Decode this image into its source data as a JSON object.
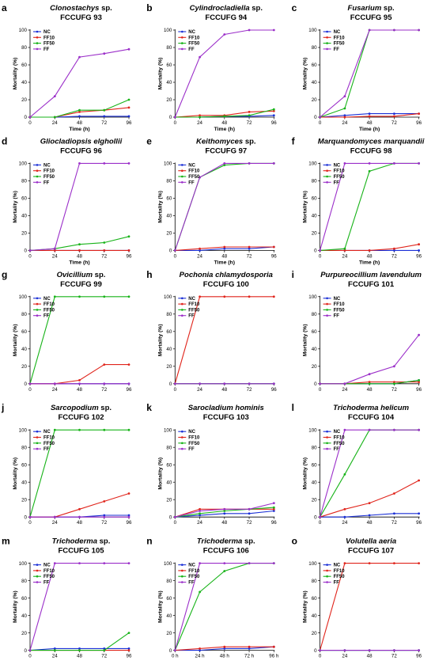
{
  "colors": {
    "NC": "#1a2fd6",
    "FF10": "#e0241b",
    "FF50": "#17b318",
    "FF": "#9b2fc9"
  },
  "legend": [
    "NC",
    "FF10",
    "FF50",
    "FF"
  ],
  "chart_data": [
    {
      "type": "line",
      "letter": "a",
      "title_italic": "Clonostachys",
      "title_rest": " sp.",
      "code": "FCCUFG 93",
      "xlabel": "Time (h)",
      "ylabel": "Mortality (%)",
      "ylim": [
        0,
        100
      ],
      "x": [
        0,
        24,
        48,
        72,
        96
      ],
      "xticks": [
        "0",
        "24",
        "48",
        "72",
        "96"
      ],
      "yticks": [
        "0",
        "20",
        "40",
        "60",
        "80",
        "100"
      ],
      "series": [
        {
          "name": "NC",
          "values": [
            0,
            0,
            1,
            1,
            1
          ]
        },
        {
          "name": "FF10",
          "values": [
            0,
            0,
            6,
            8,
            11
          ]
        },
        {
          "name": "FF50",
          "values": [
            0,
            0,
            8,
            8,
            20
          ]
        },
        {
          "name": "FF",
          "values": [
            0,
            24,
            69,
            73,
            78
          ]
        }
      ]
    },
    {
      "type": "line",
      "letter": "b",
      "title_italic": "Cylindrocladiella",
      "title_rest": " sp.",
      "code": "FCCUFG 94",
      "xlabel": "Time (h)",
      "ylabel": "Mortality (%)",
      "ylim": [
        0,
        100
      ],
      "x": [
        0,
        24,
        48,
        72,
        96
      ],
      "xticks": [
        "0",
        "24",
        "48",
        "72",
        "96"
      ],
      "yticks": [
        "0",
        "20",
        "40",
        "60",
        "80",
        "100"
      ],
      "series": [
        {
          "name": "NC",
          "values": [
            0,
            0,
            1,
            1,
            2
          ]
        },
        {
          "name": "FF10",
          "values": [
            0,
            2,
            2,
            6,
            7
          ]
        },
        {
          "name": "FF50",
          "values": [
            0,
            0,
            1,
            2,
            9
          ]
        },
        {
          "name": "FF",
          "values": [
            0,
            69,
            95,
            100,
            100
          ]
        }
      ]
    },
    {
      "type": "line",
      "letter": "c",
      "title_italic": "Fusarium",
      "title_rest": " sp.",
      "code": "FCCUFG 95",
      "xlabel": "Time (h)",
      "ylabel": "Mortality (%)",
      "ylim": [
        0,
        100
      ],
      "x": [
        0,
        24,
        48,
        72,
        96
      ],
      "xticks": [
        "0",
        "24",
        "48",
        "72",
        "96"
      ],
      "yticks": [
        "0",
        "20",
        "40",
        "60",
        "80",
        "100"
      ],
      "series": [
        {
          "name": "NC",
          "values": [
            0,
            2,
            4,
            4,
            4
          ]
        },
        {
          "name": "FF10",
          "values": [
            0,
            0,
            1,
            1,
            4
          ]
        },
        {
          "name": "FF50",
          "values": [
            0,
            10,
            100,
            100,
            100
          ]
        },
        {
          "name": "FF",
          "values": [
            0,
            24,
            100,
            100,
            100
          ]
        }
      ]
    },
    {
      "type": "line",
      "letter": "d",
      "title_italic": "Gliocladiopsis elghollii",
      "title_rest": "",
      "code": "FCCUFG 96",
      "xlabel": "Time (h)",
      "ylabel": "Mortality (%)",
      "ylim": [
        0,
        100
      ],
      "x": [
        0,
        24,
        48,
        72,
        96
      ],
      "xticks": [
        "0",
        "24",
        "48",
        "72",
        "96"
      ],
      "yticks": [
        "0",
        "20",
        "40",
        "60",
        "80",
        "100"
      ],
      "series": [
        {
          "name": "NC",
          "values": [
            0,
            0,
            0,
            0,
            0
          ]
        },
        {
          "name": "FF10",
          "values": [
            0,
            0,
            0,
            0,
            0
          ]
        },
        {
          "name": "FF50",
          "values": [
            0,
            2,
            7,
            9,
            16
          ]
        },
        {
          "name": "FF",
          "values": [
            0,
            2,
            100,
            100,
            100
          ]
        }
      ]
    },
    {
      "type": "line",
      "letter": "e",
      "title_italic": "Keithomyces",
      "title_rest": " sp.",
      "code": "FCCUFG 97",
      "xlabel": "Time (h)",
      "ylabel": "Mortality (%)",
      "ylim": [
        0,
        100
      ],
      "x": [
        0,
        24,
        48,
        72,
        96
      ],
      "xticks": [
        "0",
        "24",
        "48",
        "72",
        "96"
      ],
      "yticks": [
        "0",
        "20",
        "40",
        "60",
        "80",
        "100"
      ],
      "series": [
        {
          "name": "NC",
          "values": [
            0,
            0,
            2,
            2,
            4
          ]
        },
        {
          "name": "FF10",
          "values": [
            0,
            2,
            4,
            4,
            4
          ]
        },
        {
          "name": "FF50",
          "values": [
            0,
            84,
            98,
            100,
            100
          ]
        },
        {
          "name": "FF",
          "values": [
            0,
            84,
            100,
            100,
            100
          ]
        }
      ]
    },
    {
      "type": "line",
      "letter": "f",
      "title_italic": "Marquandomyces marquandii",
      "title_rest": "",
      "code": "FCCUFG 98",
      "xlabel": "Time (h)",
      "ylabel": "Mortality (%)",
      "ylim": [
        0,
        100
      ],
      "x": [
        0,
        24,
        48,
        72,
        96
      ],
      "xticks": [
        "0",
        "24",
        "48",
        "72",
        "96"
      ],
      "yticks": [
        "0",
        "20",
        "40",
        "60",
        "80",
        "100"
      ],
      "series": [
        {
          "name": "NC",
          "values": [
            0,
            0,
            0,
            0,
            0
          ]
        },
        {
          "name": "FF10",
          "values": [
            0,
            0,
            0,
            2,
            7
          ]
        },
        {
          "name": "FF50",
          "values": [
            0,
            2,
            91,
            100,
            100
          ]
        },
        {
          "name": "FF",
          "values": [
            0,
            100,
            100,
            100,
            100
          ]
        }
      ]
    },
    {
      "type": "line",
      "letter": "g",
      "title_italic": "Ovicillium",
      "title_rest": " sp.",
      "code": "FCCUFG 99",
      "xlabel": "",
      "ylabel": "Mortality (%)",
      "ylim": [
        0,
        100
      ],
      "x": [
        0,
        24,
        48,
        72,
        96
      ],
      "xticks": [
        "0",
        "24",
        "48",
        "72",
        "96"
      ],
      "yticks": [
        "0",
        "20",
        "40",
        "60",
        "80",
        "100"
      ],
      "series": [
        {
          "name": "NC",
          "values": [
            0,
            0,
            0,
            0,
            0
          ]
        },
        {
          "name": "FF10",
          "values": [
            0,
            0,
            4,
            22,
            22
          ]
        },
        {
          "name": "FF50",
          "values": [
            0,
            100,
            100,
            100,
            100
          ]
        },
        {
          "name": "FF",
          "values": [
            0,
            0,
            0,
            0,
            0
          ]
        }
      ]
    },
    {
      "type": "line",
      "letter": "h",
      "title_italic": "Pochonia chlamydosporia",
      "title_rest": "",
      "code": "FCCUFG 100",
      "xlabel": "",
      "ylabel": "Mortality (%)",
      "ylim": [
        0,
        100
      ],
      "x": [
        0,
        24,
        48,
        72,
        96
      ],
      "xticks": [
        "0",
        "24",
        "48",
        "72",
        "96"
      ],
      "yticks": [
        "0",
        "20",
        "40",
        "60",
        "80",
        "100"
      ],
      "series": [
        {
          "name": "NC",
          "values": [
            0,
            0,
            0,
            0,
            0
          ]
        },
        {
          "name": "FF10",
          "values": [
            0,
            100,
            100,
            100,
            100
          ]
        },
        {
          "name": "FF50",
          "values": [
            0,
            0,
            0,
            0,
            0
          ]
        },
        {
          "name": "FF",
          "values": [
            0,
            0,
            0,
            0,
            0
          ]
        }
      ]
    },
    {
      "type": "line",
      "letter": "i",
      "title_italic": "Purpureocillium lavendulum",
      "title_rest": "",
      "code": "FCCUFG 101",
      "xlabel": "",
      "ylabel": "Mortality (%)",
      "ylim": [
        0,
        100
      ],
      "x": [
        0,
        24,
        48,
        72,
        96
      ],
      "xticks": [
        "0",
        "24",
        "48",
        "72",
        "96"
      ],
      "yticks": [
        "0",
        "20",
        "40",
        "60",
        "80",
        "100"
      ],
      "series": [
        {
          "name": "NC",
          "values": [
            0,
            0,
            0,
            0,
            4
          ]
        },
        {
          "name": "FF10",
          "values": [
            0,
            0,
            2,
            2,
            2
          ]
        },
        {
          "name": "FF50",
          "values": [
            0,
            0,
            0,
            0,
            4
          ]
        },
        {
          "name": "FF",
          "values": [
            0,
            0,
            11,
            20,
            56
          ]
        }
      ]
    },
    {
      "type": "line",
      "letter": "j",
      "title_italic": "Sarcopodium",
      "title_rest": " sp.",
      "code": "FCCUFG 102",
      "xlabel": "",
      "ylabel": "Mortality (%)",
      "ylim": [
        0,
        100
      ],
      "x": [
        0,
        24,
        48,
        72,
        96
      ],
      "xticks": [
        "0",
        "24",
        "48",
        "72",
        "96"
      ],
      "yticks": [
        "0",
        "20",
        "40",
        "60",
        "80",
        "100"
      ],
      "series": [
        {
          "name": "NC",
          "values": [
            0,
            0,
            0,
            2,
            2
          ]
        },
        {
          "name": "FF10",
          "values": [
            0,
            0,
            9,
            18,
            27
          ]
        },
        {
          "name": "FF50",
          "values": [
            0,
            100,
            100,
            100,
            100
          ]
        },
        {
          "name": "FF",
          "values": [
            0,
            0,
            0,
            0,
            0
          ]
        }
      ]
    },
    {
      "type": "line",
      "letter": "k",
      "title_italic": "Sarocladium hominis",
      "title_rest": "",
      "code": "FCCUFG 103",
      "xlabel": "",
      "ylabel": "Mortality (%)",
      "ylim": [
        0,
        100
      ],
      "x": [
        0,
        24,
        48,
        72,
        96
      ],
      "xticks": [
        "0",
        "24",
        "48",
        "72",
        "96"
      ],
      "yticks": [
        "0",
        "20",
        "40",
        "60",
        "80",
        "100"
      ],
      "series": [
        {
          "name": "NC",
          "values": [
            0,
            2,
            4,
            4,
            7
          ]
        },
        {
          "name": "FF10",
          "values": [
            0,
            9,
            9,
            9,
            9
          ]
        },
        {
          "name": "FF50",
          "values": [
            0,
            4,
            7,
            9,
            11
          ]
        },
        {
          "name": "FF",
          "values": [
            0,
            7,
            9,
            9,
            16
          ]
        }
      ]
    },
    {
      "type": "line",
      "letter": "l",
      "title_italic": "Trichoderma helicum",
      "title_rest": "",
      "code": "FCCUFG 104",
      "xlabel": "",
      "ylabel": "Mortality (%)",
      "ylim": [
        0,
        100
      ],
      "x": [
        0,
        24,
        48,
        72,
        96
      ],
      "xticks": [
        "0",
        "24",
        "48",
        "72",
        "96"
      ],
      "yticks": [
        "0",
        "20",
        "40",
        "60",
        "80",
        "100"
      ],
      "series": [
        {
          "name": "NC",
          "values": [
            0,
            0,
            2,
            4,
            4
          ]
        },
        {
          "name": "FF10",
          "values": [
            0,
            9,
            16,
            27,
            42
          ]
        },
        {
          "name": "FF50",
          "values": [
            0,
            49,
            100,
            100,
            100
          ]
        },
        {
          "name": "FF",
          "values": [
            0,
            100,
            100,
            100,
            100
          ]
        }
      ]
    },
    {
      "type": "line",
      "letter": "m",
      "title_italic": "Trichoderma",
      "title_rest": " sp.",
      "code": "FCCUFG 105",
      "xlabel": "",
      "ylabel": "Mortality (%)",
      "ylim": [
        0,
        100
      ],
      "x": [
        0,
        24,
        48,
        72,
        96
      ],
      "xticks": [
        "0",
        "24",
        "48",
        "72",
        "96"
      ],
      "yticks": [
        "0",
        "20",
        "40",
        "60",
        "80",
        "100"
      ],
      "series": [
        {
          "name": "NC",
          "values": [
            0,
            2,
            2,
            2,
            2
          ]
        },
        {
          "name": "FF10",
          "values": [
            0,
            0,
            0,
            0,
            0
          ]
        },
        {
          "name": "FF50",
          "values": [
            0,
            0,
            0,
            0,
            20
          ]
        },
        {
          "name": "FF",
          "values": [
            0,
            100,
            100,
            100,
            100
          ]
        }
      ]
    },
    {
      "type": "line",
      "letter": "n",
      "title_italic": "Trichoderma",
      "title_rest": " sp.",
      "code": "FCCUFG 106",
      "xlabel": "",
      "ylabel": "Mortality (%)",
      "ylim": [
        0,
        100
      ],
      "x": [
        0,
        24,
        48,
        72,
        96
      ],
      "xticks": [
        "0 h",
        "24 h",
        "48 h",
        "72 h",
        "96 h"
      ],
      "yticks": [
        "0",
        "20",
        "40",
        "60",
        "80",
        "100"
      ],
      "series": [
        {
          "name": "NC",
          "values": [
            0,
            0,
            2,
            2,
            4
          ]
        },
        {
          "name": "FF10",
          "values": [
            0,
            2,
            4,
            4,
            4
          ]
        },
        {
          "name": "FF50",
          "values": [
            0,
            67,
            91,
            100,
            100
          ]
        },
        {
          "name": "FF",
          "values": [
            0,
            100,
            100,
            100,
            100
          ]
        }
      ]
    },
    {
      "type": "line",
      "letter": "o",
      "title_italic": "Volutella aeria",
      "title_rest": "",
      "code": "FCCUFG 107",
      "xlabel": "",
      "ylabel": "Mortality (%)",
      "ylim": [
        0,
        100
      ],
      "x": [
        0,
        24,
        48,
        72,
        96
      ],
      "xticks": [
        "0",
        "24",
        "48",
        "72",
        "96"
      ],
      "yticks": [
        "0",
        "20",
        "40",
        "60",
        "80",
        "100"
      ],
      "series": [
        {
          "name": "NC",
          "values": [
            0,
            0,
            0,
            0,
            0
          ]
        },
        {
          "name": "FF10",
          "values": [
            0,
            100,
            100,
            100,
            100
          ]
        },
        {
          "name": "FF50",
          "values": [
            0,
            0,
            0,
            0,
            0
          ]
        },
        {
          "name": "FF",
          "values": [
            0,
            0,
            0,
            0,
            0
          ]
        }
      ]
    }
  ]
}
